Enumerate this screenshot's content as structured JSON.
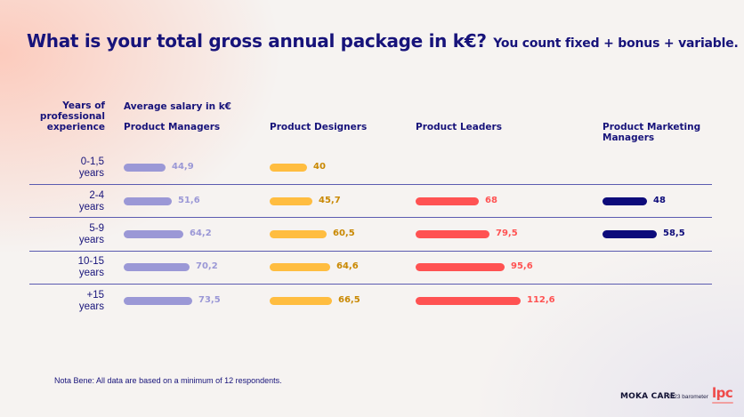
{
  "title": {
    "main": "What is your total gross annual package in k€?",
    "sub": "You count fixed + bonus + variable."
  },
  "headers": {
    "years": "Years of professional experience",
    "average": "Average salary in k€"
  },
  "note": "Nota Bene: All data are based on a minimum of 12 respondents.",
  "branding": {
    "moka": "MOKA CARE",
    "barometer": "2023 barometer",
    "lpc": "lpc"
  },
  "chart_data": {
    "type": "bar",
    "orientation": "horizontal",
    "categories": [
      "0-1,5 years",
      "2-4 years",
      "5-9 years",
      "10-15 years",
      "+15 years"
    ],
    "category_lines": [
      [
        "0-1,5",
        "years"
      ],
      [
        "2-4",
        "years"
      ],
      [
        "5-9",
        "years"
      ],
      [
        "10-15",
        "years"
      ],
      [
        "+15",
        "years"
      ]
    ],
    "decimal_separator": ",",
    "max_value": 120,
    "series": [
      {
        "name": "Product Managers",
        "color": "#9b98d6",
        "label_color": "#9b98d6",
        "values": [
          44.9,
          51.6,
          64.2,
          70.2,
          73.5
        ]
      },
      {
        "name": "Product Designers",
        "color": "#ffbd40",
        "label_color": "#c98800",
        "values": [
          40,
          45.7,
          60.5,
          64.6,
          66.5
        ]
      },
      {
        "name": "Product Leaders",
        "color": "#ff5252",
        "label_color": "#ff5252",
        "values": [
          null,
          68,
          79.5,
          95.6,
          112.6
        ]
      },
      {
        "name": "Product Marketing Managers",
        "color": "#0d0b7a",
        "label_color": "#0d0b7a",
        "values": [
          null,
          48,
          58.5,
          null,
          null
        ]
      }
    ]
  }
}
